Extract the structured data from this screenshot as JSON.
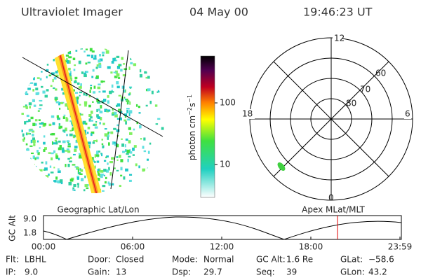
{
  "header": {
    "title": "Ultraviolet Imager",
    "date": "04 May 00",
    "time": "19:46:23 UT"
  },
  "colorbar": {
    "label": {
      "unit": "photon cm",
      "exp1": "−2",
      "unit2": "s",
      "exp2": "−1"
    },
    "ticks": [
      "100",
      "10"
    ]
  },
  "polar": {
    "mlt_labels": [
      "12",
      "18",
      "6",
      "0"
    ],
    "lat_labels": [
      "60",
      "70",
      "80"
    ]
  },
  "altitude_plot": {
    "left_title": "Geographic Lat/Lon",
    "right_title": "Apex MLat/MLT",
    "y_label": "GC Alt",
    "yticks": [
      "9.0",
      "1.8"
    ],
    "xticks": [
      "00:00",
      "06:00",
      "12:00",
      "18:00",
      "23:59"
    ]
  },
  "info": [
    [
      {
        "label": "Flt:",
        "value": "LBHL"
      },
      {
        "label": "Door:",
        "value": "Closed"
      },
      {
        "label": "Mode:",
        "value": "Normal"
      },
      {
        "label": "GC Alt:",
        "value": "1.6 Re"
      },
      {
        "label": "GLat:",
        "value": "−58.6"
      }
    ],
    [
      {
        "label": "IP:",
        "value": "9.0"
      },
      {
        "label": "Gain:",
        "value": "13"
      },
      {
        "label": "Dsp:",
        "value": "29.7"
      },
      {
        "label": "Seq:",
        "value": "39"
      },
      {
        "label": "GLon:",
        "value": "43.2"
      }
    ]
  ]
}
